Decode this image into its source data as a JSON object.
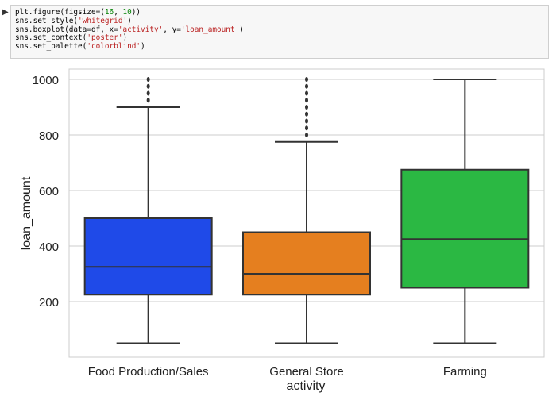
{
  "notebook": {
    "run_icon": "run-indicator-icon",
    "code_lines": [
      [
        {
          "t": "plt.figure(figsize=(",
          "c": ""
        },
        {
          "t": "16",
          "c": "num"
        },
        {
          "t": ", ",
          "c": ""
        },
        {
          "t": "10",
          "c": "num"
        },
        {
          "t": "))",
          "c": ""
        }
      ],
      [
        {
          "t": "sns.set_style(",
          "c": ""
        },
        {
          "t": "'whitegrid'",
          "c": "str"
        },
        {
          "t": ")",
          "c": ""
        }
      ],
      [
        {
          "t": "sns.boxplot(data=df, x=",
          "c": ""
        },
        {
          "t": "'activity'",
          "c": "str"
        },
        {
          "t": ", y=",
          "c": ""
        },
        {
          "t": "'loan_amount'",
          "c": "str"
        },
        {
          "t": ")",
          "c": ""
        }
      ],
      [
        {
          "t": "sns.set_context(",
          "c": ""
        },
        {
          "t": "'poster'",
          "c": "str"
        },
        {
          "t": ")",
          "c": ""
        }
      ],
      [
        {
          "t": "sns.set_palette(",
          "c": ""
        },
        {
          "t": "'colorblind'",
          "c": "str"
        },
        {
          "t": ")",
          "c": ""
        }
      ]
    ]
  },
  "chart_data": {
    "type": "box",
    "title": "",
    "xlabel": "activity",
    "ylabel": "loan_amount",
    "ylim": [
      0,
      1050
    ],
    "yticks": [
      200,
      400,
      600,
      800,
      1000
    ],
    "grid": true,
    "categories": [
      "Food Production/Sales",
      "General Store",
      "Farming"
    ],
    "boxes": [
      {
        "category": "Food Production/Sales",
        "whisker_low": 50,
        "q1": 225,
        "median": 325,
        "q3": 500,
        "whisker_high": 900,
        "outliers": [
          925,
          950,
          975,
          1000
        ],
        "color": "#1f4ae8"
      },
      {
        "category": "General Store",
        "whisker_low": 50,
        "q1": 225,
        "median": 300,
        "q3": 450,
        "whisker_high": 775,
        "outliers": [
          800,
          825,
          850,
          875,
          900,
          925,
          950,
          975,
          1000
        ],
        "color": "#e57f1f"
      },
      {
        "category": "Farming",
        "whisker_low": 50,
        "q1": 250,
        "median": 425,
        "q3": 675,
        "whisker_high": 1000,
        "outliers": [],
        "color": "#2bb843"
      }
    ]
  }
}
